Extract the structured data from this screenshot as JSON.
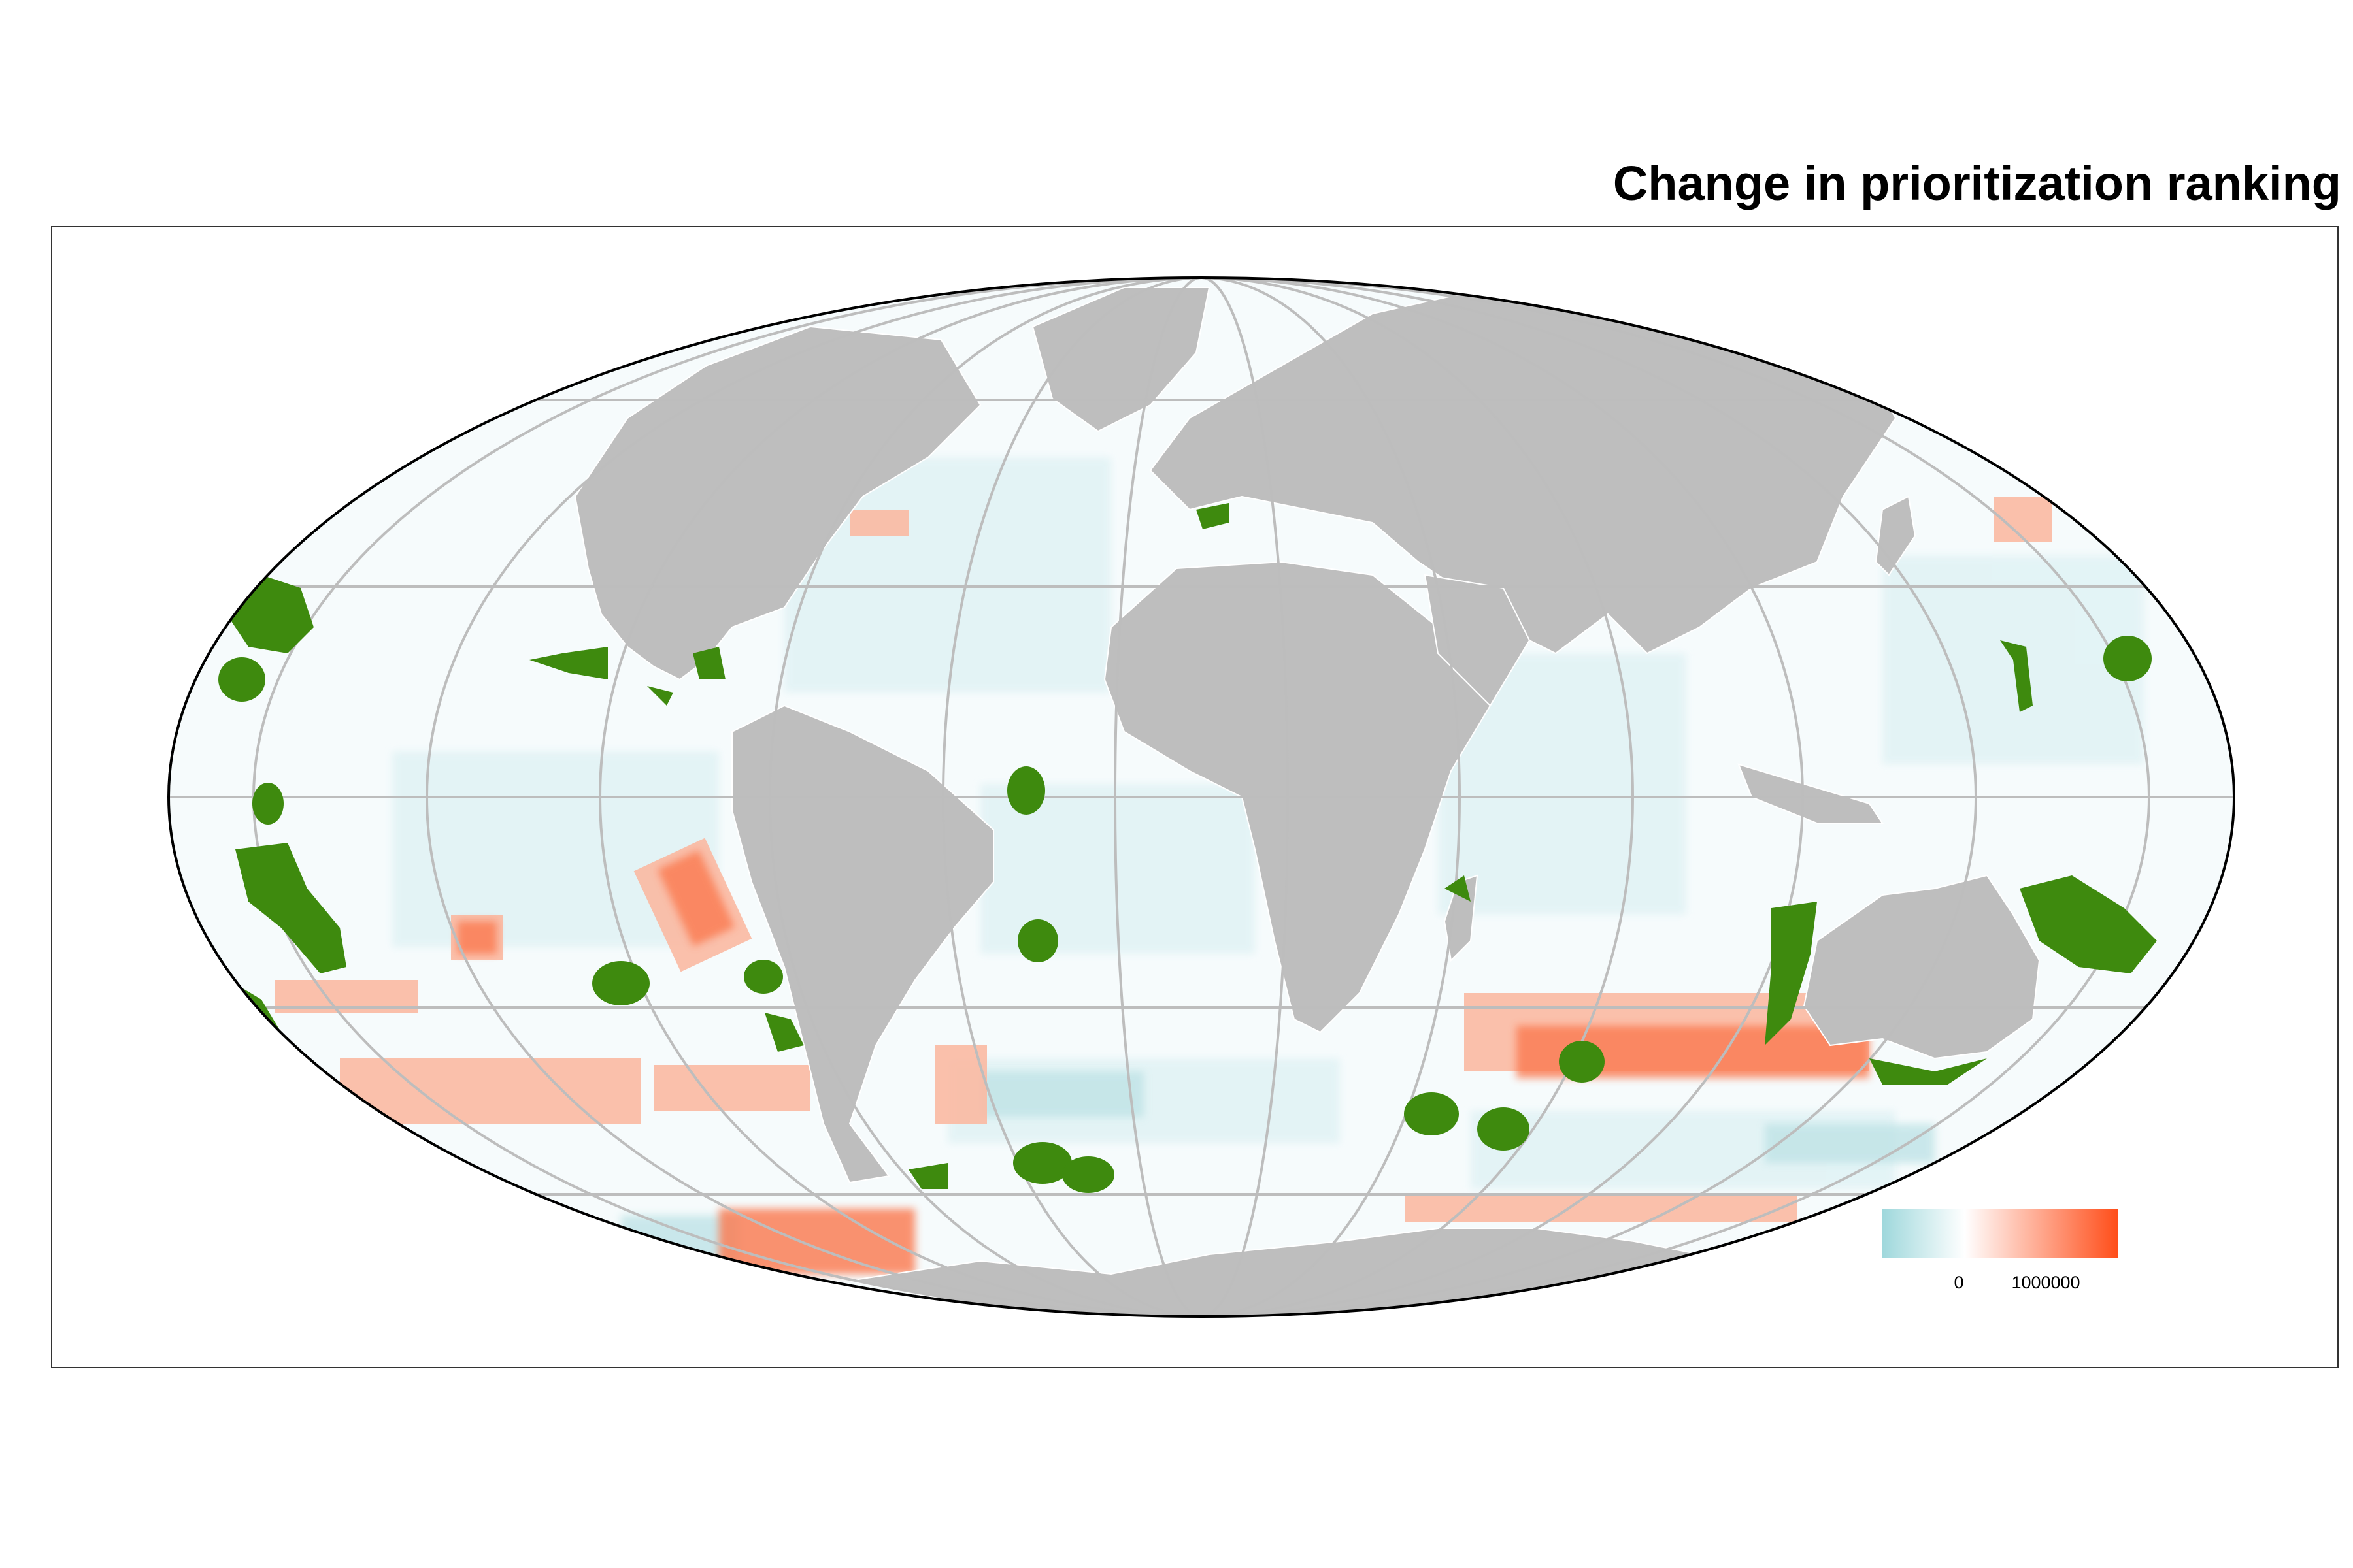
{
  "title": "Change in prioritization ranking",
  "projection": "Mollweide (world)",
  "colors": {
    "ocean_low": "#9fd8dc",
    "ocean_mid": "#f6fbfc",
    "ocean_high": "#ff4e1a",
    "land": "#bebebe",
    "country_borders": "#ffffff",
    "graticule": "#bdbdbd",
    "protected_areas": "#3e8a0e",
    "globe_outline": "#000000"
  },
  "legend": {
    "gradient": [
      "#9fd8dc",
      "#ffffff",
      "#ff4e1a"
    ],
    "ticks": [
      "0",
      "1000000"
    ]
  },
  "layers": [
    "change-in-ranking-raster",
    "land-mask",
    "country-borders",
    "graticule",
    "protected-areas"
  ]
}
